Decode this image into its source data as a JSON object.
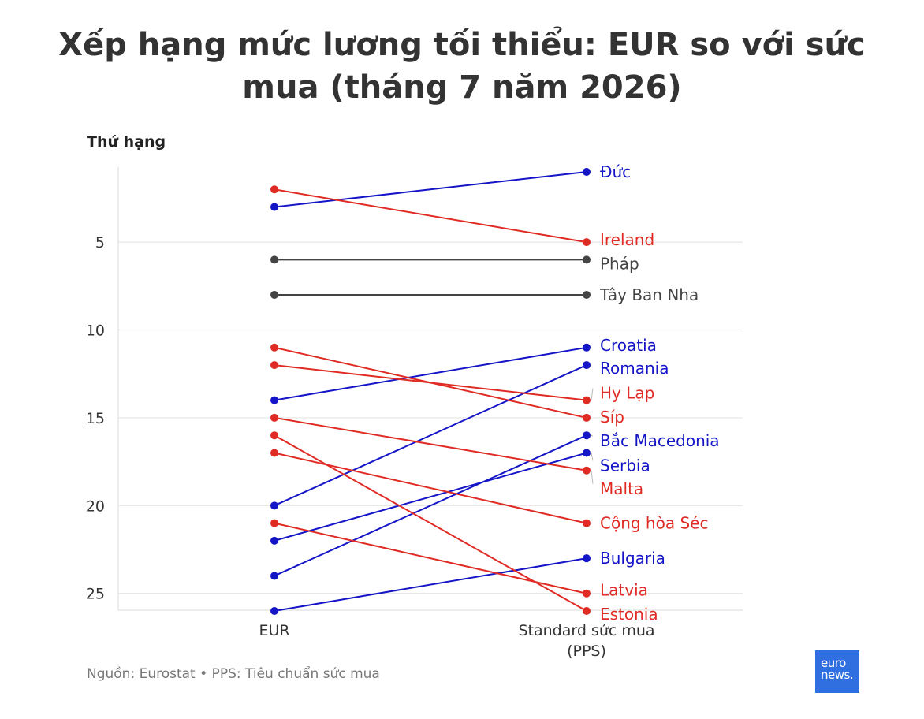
{
  "title": "Xếp hạng mức lương tối thiểu: EUR so với sức mua (tháng 7 năm 2026)",
  "source": "Nguồn: Eurostat • PPS: Tiêu chuẩn sức mua",
  "logo": {
    "line1": "euro",
    "line2": "news."
  },
  "colors": {
    "up": "#1515c8",
    "down": "#e02b24",
    "same": "#444444",
    "grid": "#e5e5e5",
    "axis_text": "#333333"
  },
  "chart_data": {
    "type": "line",
    "ylabel": "Thứ hạng",
    "categories": [
      "EUR",
      "Standard sức mua (PPS)"
    ],
    "y_reversed": true,
    "ylim": [
      1,
      26
    ],
    "yticks": [
      5,
      10,
      15,
      20,
      25
    ],
    "grid": true,
    "series": [
      {
        "name": "Đức",
        "values": [
          3,
          1
        ],
        "color": "#1515c8"
      },
      {
        "name": "Ireland",
        "values": [
          2,
          5
        ],
        "color": "#e02b24"
      },
      {
        "name": "Pháp",
        "values": [
          6,
          6
        ],
        "color": "#444444"
      },
      {
        "name": "Tây Ban Nha",
        "values": [
          8,
          8
        ],
        "color": "#444444"
      },
      {
        "name": "Croatia",
        "values": [
          14,
          11
        ],
        "color": "#1515c8"
      },
      {
        "name": "Romania",
        "values": [
          20,
          12
        ],
        "color": "#1515c8"
      },
      {
        "name": "Hy Lạp",
        "values": [
          12,
          14
        ],
        "color": "#e02b24"
      },
      {
        "name": "Síp",
        "values": [
          11,
          15
        ],
        "color": "#e02b24"
      },
      {
        "name": "Bắc Macedonia",
        "values": [
          24,
          16
        ],
        "color": "#1515c8"
      },
      {
        "name": "Serbia",
        "values": [
          22,
          17
        ],
        "color": "#1515c8"
      },
      {
        "name": "Malta",
        "values": [
          15,
          18
        ],
        "color": "#e02b24"
      },
      {
        "name": "Cộng hòa Séc",
        "values": [
          17,
          21
        ],
        "color": "#e02b24"
      },
      {
        "name": "Bulgaria",
        "values": [
          26,
          23
        ],
        "color": "#1515c8"
      },
      {
        "name": "Latvia",
        "values": [
          21,
          25
        ],
        "color": "#e02b24"
      },
      {
        "name": "Estonia",
        "values": [
          16,
          26
        ],
        "color": "#e02b24"
      }
    ]
  }
}
